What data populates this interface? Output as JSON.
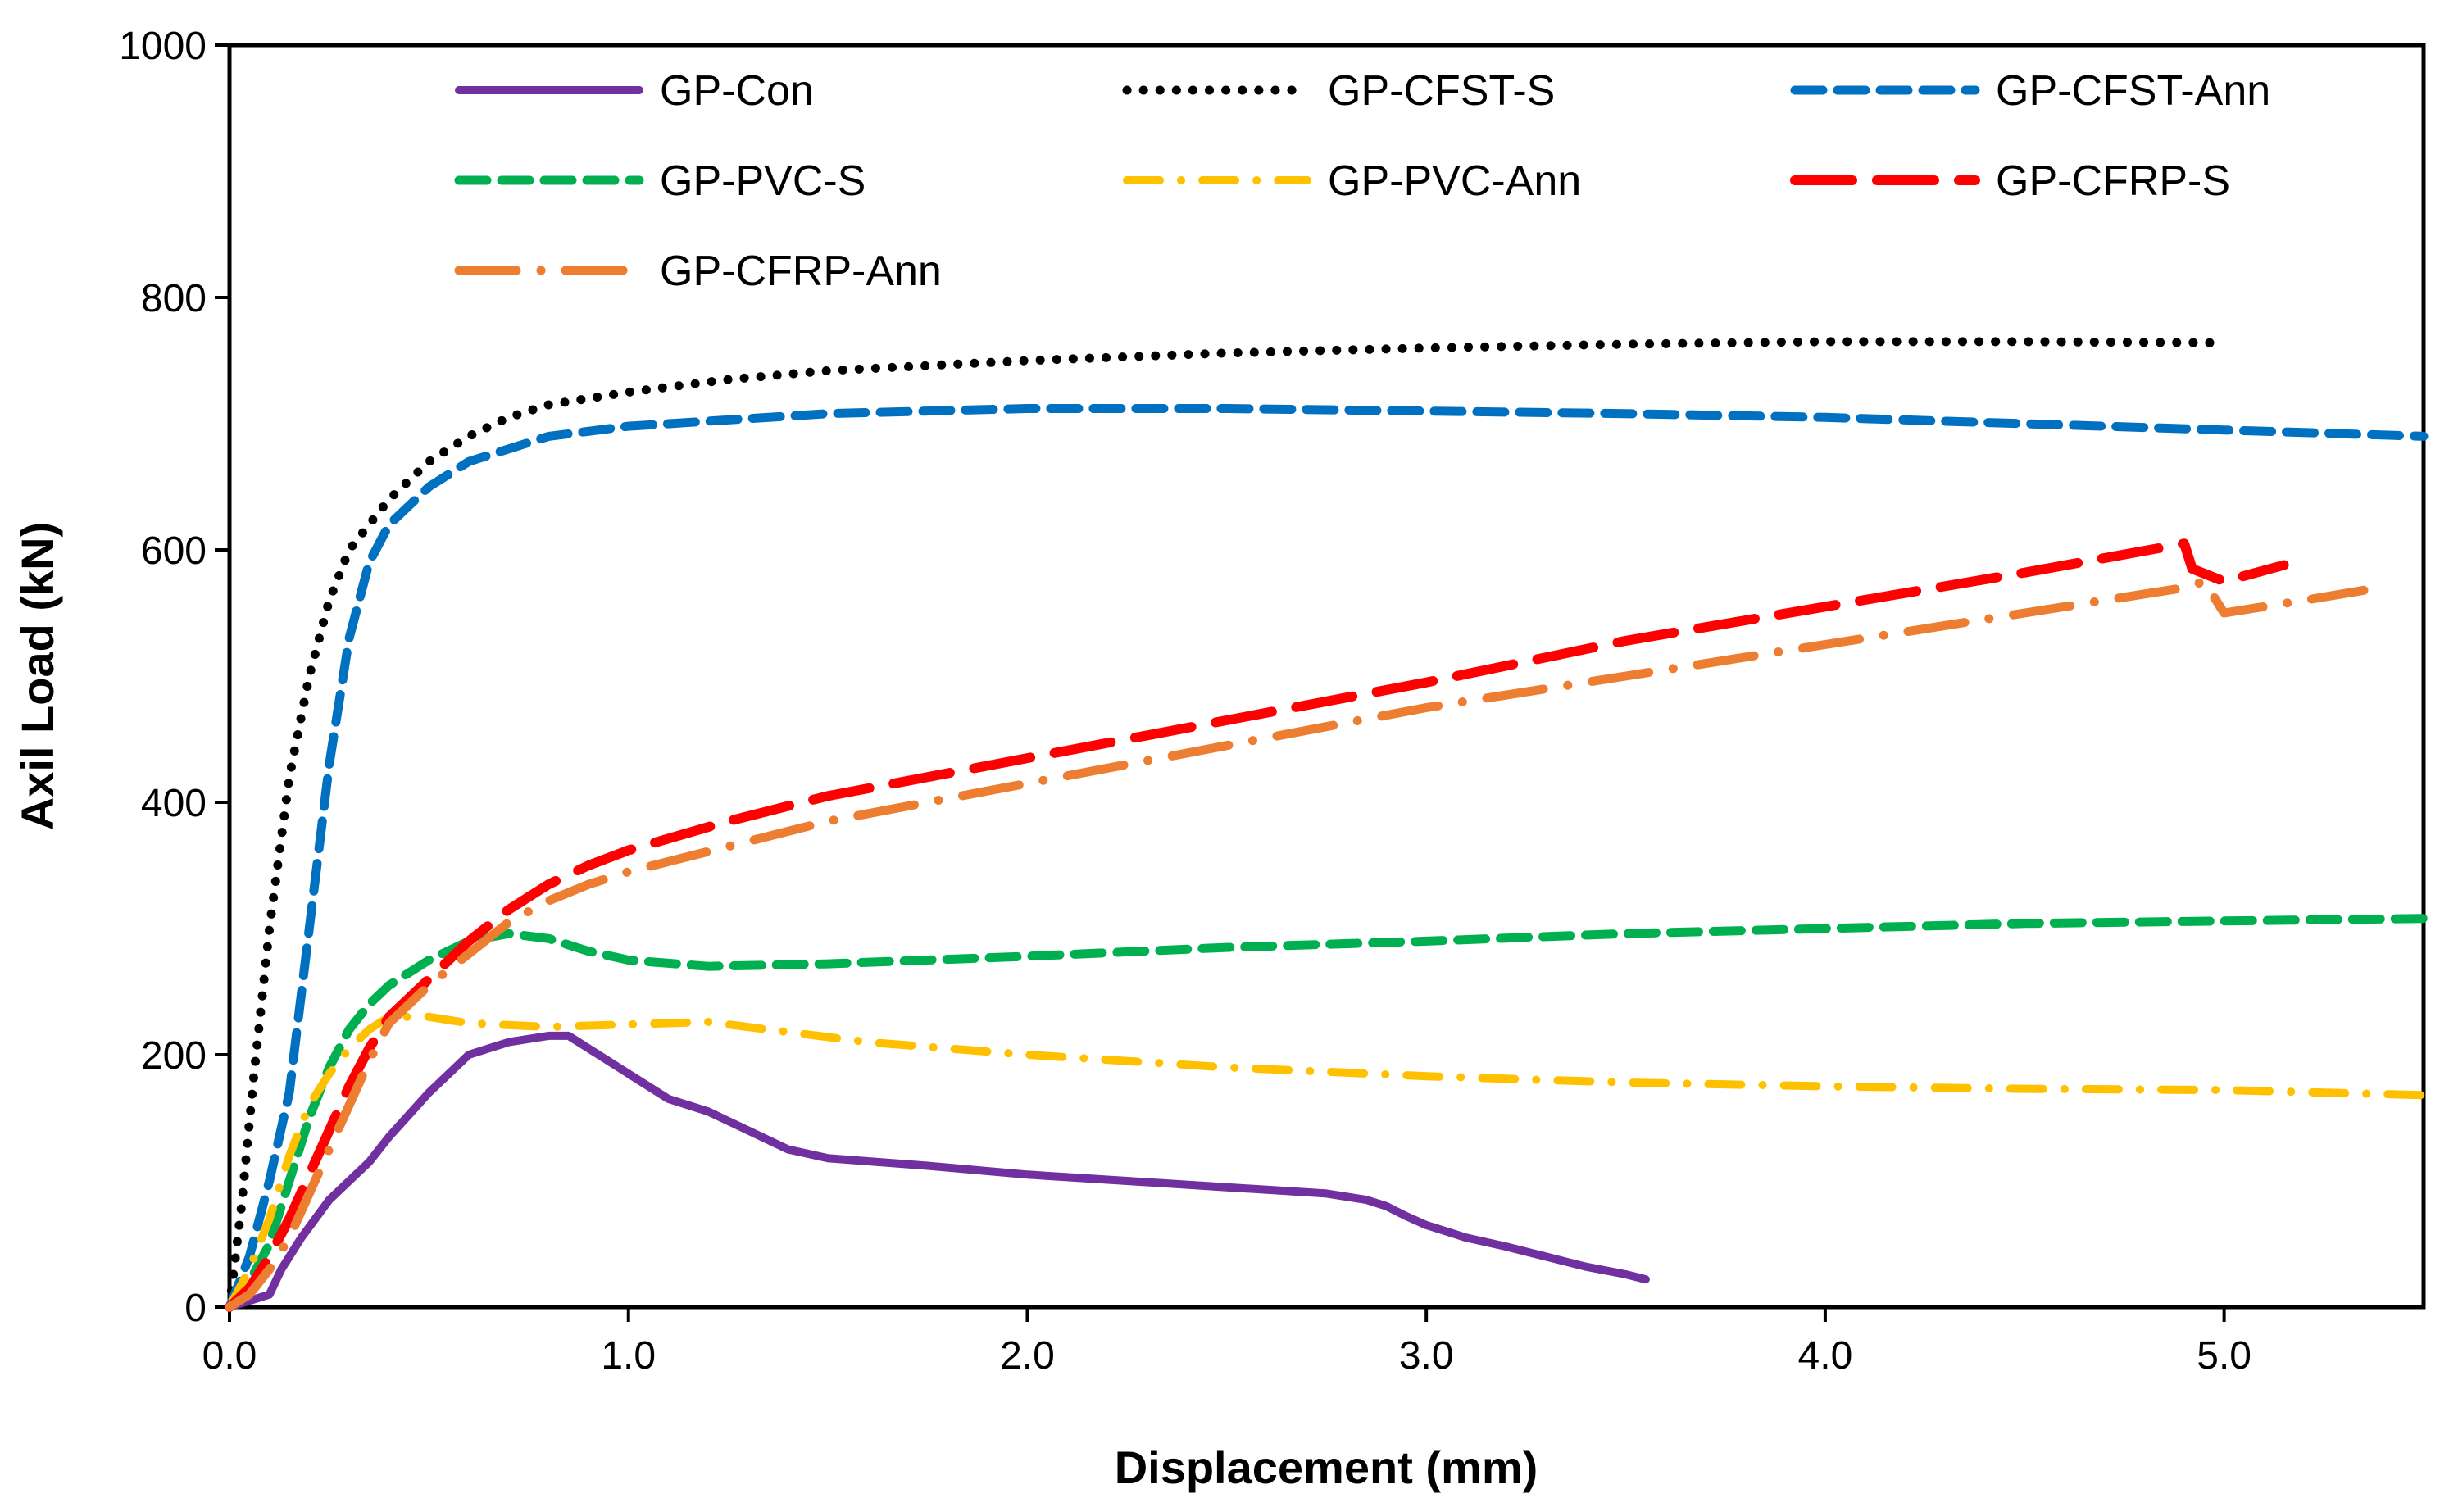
{
  "chart_data": {
    "type": "line",
    "title": "",
    "xlabel": "Displacement  (mm)",
    "ylabel": "Axil Load (kN)",
    "xlim": [
      0,
      5.5
    ],
    "ylim": [
      0,
      1000
    ],
    "xticks": [
      0,
      1,
      2,
      3,
      4,
      5
    ],
    "xtick_labels": [
      "0.0",
      "1.0",
      "2.0",
      "3.0",
      "4.0",
      "5.0"
    ],
    "yticks": [
      0,
      200,
      400,
      600,
      800,
      1000
    ],
    "ytick_labels": [
      "0",
      "200",
      "400",
      "600",
      "800",
      "1000"
    ],
    "grid": false,
    "legend_position": "top",
    "series": [
      {
        "name": "GP-Con",
        "color": "#7030A0",
        "style": "solid",
        "points": [
          [
            0,
            0
          ],
          [
            0.1,
            10
          ],
          [
            0.13,
            30
          ],
          [
            0.18,
            55
          ],
          [
            0.25,
            85
          ],
          [
            0.3,
            100
          ],
          [
            0.35,
            115
          ],
          [
            0.4,
            135
          ],
          [
            0.5,
            170
          ],
          [
            0.6,
            200
          ],
          [
            0.7,
            210
          ],
          [
            0.8,
            215
          ],
          [
            0.85,
            215
          ],
          [
            0.9,
            205
          ],
          [
            1.0,
            185
          ],
          [
            1.1,
            165
          ],
          [
            1.2,
            155
          ],
          [
            1.3,
            140
          ],
          [
            1.4,
            125
          ],
          [
            1.5,
            118
          ],
          [
            1.75,
            112
          ],
          [
            2.0,
            105
          ],
          [
            2.25,
            100
          ],
          [
            2.5,
            95
          ],
          [
            2.75,
            90
          ],
          [
            2.85,
            85
          ],
          [
            2.9,
            80
          ],
          [
            2.95,
            72
          ],
          [
            3.0,
            65
          ],
          [
            3.1,
            55
          ],
          [
            3.2,
            48
          ],
          [
            3.3,
            40
          ],
          [
            3.4,
            32
          ],
          [
            3.5,
            26
          ],
          [
            3.55,
            22
          ]
        ]
      },
      {
        "name": "GP-CFST-S",
        "color": "#000000",
        "style": "dotted",
        "points": [
          [
            0,
            0
          ],
          [
            0.03,
            80
          ],
          [
            0.06,
            180
          ],
          [
            0.1,
            300
          ],
          [
            0.15,
            420
          ],
          [
            0.2,
            500
          ],
          [
            0.25,
            560
          ],
          [
            0.3,
            600
          ],
          [
            0.4,
            640
          ],
          [
            0.5,
            670
          ],
          [
            0.6,
            690
          ],
          [
            0.7,
            705
          ],
          [
            0.8,
            715
          ],
          [
            1.0,
            725
          ],
          [
            1.25,
            735
          ],
          [
            1.5,
            742
          ],
          [
            2.0,
            750
          ],
          [
            2.5,
            756
          ],
          [
            3.0,
            760
          ],
          [
            3.5,
            763
          ],
          [
            4.0,
            765
          ],
          [
            4.5,
            765
          ],
          [
            5.0,
            764
          ]
        ]
      },
      {
        "name": "GP-CFST-Ann",
        "color": "#0070C0",
        "style": "dashed",
        "points": [
          [
            0,
            0
          ],
          [
            0.05,
            40
          ],
          [
            0.1,
            100
          ],
          [
            0.15,
            170
          ],
          [
            0.2,
            300
          ],
          [
            0.25,
            430
          ],
          [
            0.3,
            530
          ],
          [
            0.35,
            590
          ],
          [
            0.4,
            620
          ],
          [
            0.5,
            650
          ],
          [
            0.6,
            670
          ],
          [
            0.7,
            680
          ],
          [
            0.8,
            690
          ],
          [
            1.0,
            698
          ],
          [
            1.25,
            703
          ],
          [
            1.5,
            708
          ],
          [
            2.0,
            712
          ],
          [
            2.5,
            712
          ],
          [
            3.0,
            710
          ],
          [
            3.5,
            708
          ],
          [
            4.0,
            705
          ],
          [
            4.5,
            700
          ],
          [
            5.0,
            695
          ],
          [
            5.5,
            690
          ]
        ]
      },
      {
        "name": "GP-PVC-S",
        "color": "#00B050",
        "style": "dashed",
        "points": [
          [
            0,
            0
          ],
          [
            0.05,
            20
          ],
          [
            0.1,
            50
          ],
          [
            0.15,
            100
          ],
          [
            0.2,
            150
          ],
          [
            0.25,
            190
          ],
          [
            0.3,
            220
          ],
          [
            0.35,
            240
          ],
          [
            0.4,
            255
          ],
          [
            0.5,
            275
          ],
          [
            0.6,
            290
          ],
          [
            0.7,
            296
          ],
          [
            0.8,
            292
          ],
          [
            0.9,
            282
          ],
          [
            1.0,
            275
          ],
          [
            1.2,
            270
          ],
          [
            1.5,
            272
          ],
          [
            2.0,
            278
          ],
          [
            2.5,
            285
          ],
          [
            3.0,
            290
          ],
          [
            3.5,
            296
          ],
          [
            4.0,
            300
          ],
          [
            4.5,
            304
          ],
          [
            5.0,
            306
          ],
          [
            5.5,
            308
          ]
        ]
      },
      {
        "name": "GP-PVC-Ann",
        "color": "#FFC000",
        "style": "dash-dot",
        "points": [
          [
            0,
            0
          ],
          [
            0.05,
            30
          ],
          [
            0.1,
            70
          ],
          [
            0.15,
            120
          ],
          [
            0.2,
            160
          ],
          [
            0.25,
            185
          ],
          [
            0.3,
            205
          ],
          [
            0.35,
            220
          ],
          [
            0.4,
            230
          ],
          [
            0.5,
            230
          ],
          [
            0.6,
            225
          ],
          [
            0.8,
            222
          ],
          [
            1.0,
            224
          ],
          [
            1.2,
            226
          ],
          [
            1.4,
            218
          ],
          [
            1.6,
            210
          ],
          [
            1.8,
            205
          ],
          [
            2.0,
            200
          ],
          [
            2.5,
            190
          ],
          [
            3.0,
            183
          ],
          [
            3.5,
            178
          ],
          [
            4.0,
            175
          ],
          [
            4.5,
            173
          ],
          [
            5.0,
            172
          ],
          [
            5.5,
            168
          ]
        ]
      },
      {
        "name": "GP-CFRP-S",
        "color": "#FF0000",
        "style": "long-dash",
        "points": [
          [
            0,
            0
          ],
          [
            0.05,
            15
          ],
          [
            0.1,
            40
          ],
          [
            0.15,
            70
          ],
          [
            0.2,
            105
          ],
          [
            0.25,
            140
          ],
          [
            0.3,
            175
          ],
          [
            0.35,
            205
          ],
          [
            0.4,
            230
          ],
          [
            0.5,
            260
          ],
          [
            0.6,
            290
          ],
          [
            0.7,
            315
          ],
          [
            0.8,
            335
          ],
          [
            0.9,
            350
          ],
          [
            1.0,
            362
          ],
          [
            1.25,
            385
          ],
          [
            1.5,
            405
          ],
          [
            2.0,
            435
          ],
          [
            2.5,
            465
          ],
          [
            3.0,
            495
          ],
          [
            3.5,
            528
          ],
          [
            4.0,
            555
          ],
          [
            4.5,
            582
          ],
          [
            4.9,
            605
          ],
          [
            4.92,
            585
          ],
          [
            5.0,
            575
          ],
          [
            5.15,
            588
          ]
        ]
      },
      {
        "name": "GP-CFRP-Ann",
        "color": "#ED7D31",
        "style": "long-dash-dot",
        "points": [
          [
            0,
            0
          ],
          [
            0.05,
            10
          ],
          [
            0.1,
            30
          ],
          [
            0.15,
            55
          ],
          [
            0.2,
            90
          ],
          [
            0.25,
            125
          ],
          [
            0.3,
            160
          ],
          [
            0.35,
            195
          ],
          [
            0.4,
            225
          ],
          [
            0.5,
            255
          ],
          [
            0.6,
            280
          ],
          [
            0.7,
            305
          ],
          [
            0.8,
            322
          ],
          [
            0.9,
            335
          ],
          [
            1.0,
            345
          ],
          [
            1.25,
            365
          ],
          [
            1.5,
            385
          ],
          [
            2.0,
            415
          ],
          [
            2.5,
            445
          ],
          [
            3.0,
            475
          ],
          [
            3.5,
            500
          ],
          [
            4.0,
            525
          ],
          [
            4.5,
            550
          ],
          [
            4.9,
            570
          ],
          [
            4.95,
            575
          ],
          [
            5.0,
            550
          ],
          [
            5.1,
            555
          ],
          [
            5.2,
            560
          ],
          [
            5.35,
            568
          ]
        ]
      }
    ]
  }
}
